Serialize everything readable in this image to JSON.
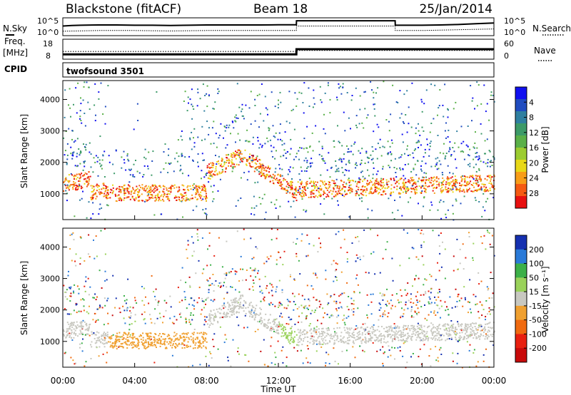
{
  "header": {
    "station": "Blackstone (fitACF)",
    "beam": "Beam 18",
    "date": "25/Jan/2014"
  },
  "left_labels": {
    "nsky": "N.Sky",
    "freq_line1": "Freq.",
    "freq_line2": "[MHz]",
    "cpid": "CPID"
  },
  "right_labels": {
    "nsearch": "N.Search",
    "nave": "Nave"
  },
  "cpid_text": "twofsound 3501",
  "x_axis": {
    "label": "Time UT",
    "ticks": [
      "00:00",
      "04:00",
      "08:00",
      "12:00",
      "16:00",
      "20:00",
      "00:00"
    ]
  },
  "chart_data": [
    {
      "type": "line",
      "panel": "noise",
      "yscale": "log",
      "left_ticks": [
        "10^5",
        "10^0"
      ],
      "right_ticks": [
        "10^5",
        "10^0"
      ],
      "series": [
        {
          "name": "N.Sky",
          "x_hours": [
            0,
            0.5,
            1,
            2,
            3,
            4,
            5,
            6,
            7,
            8,
            9,
            10,
            11,
            12,
            13,
            13.01,
            14,
            15,
            16,
            17,
            18,
            18.5,
            18.51,
            19,
            20,
            21,
            22,
            23,
            24
          ],
          "values": [
            0.55,
            0.58,
            0.6,
            0.62,
            0.62,
            0.6,
            0.6,
            0.58,
            0.6,
            0.62,
            0.62,
            0.62,
            0.62,
            0.63,
            0.63,
            0.9,
            0.9,
            0.9,
            0.9,
            0.9,
            0.9,
            0.9,
            0.6,
            0.6,
            0.6,
            0.62,
            0.65,
            0.7,
            0.75
          ]
        },
        {
          "name": "N.Search",
          "x_hours": [
            0,
            2,
            4,
            6,
            8,
            10,
            12,
            13,
            13.01,
            14,
            16,
            18,
            18.5,
            18.51,
            20,
            22,
            24
          ],
          "values": [
            0.2,
            0.25,
            0.25,
            0.22,
            0.25,
            0.25,
            0.25,
            0.25,
            0.55,
            0.55,
            0.55,
            0.55,
            0.55,
            0.25,
            0.25,
            0.3,
            0.35
          ]
        }
      ]
    },
    {
      "type": "line",
      "panel": "frequency",
      "left_ticks": [
        "18",
        "8"
      ],
      "right_ticks": [
        "60",
        "0"
      ],
      "ylim": [
        8,
        18
      ],
      "series": [
        {
          "name": "Freq.",
          "x_hours": [
            0,
            13,
            13.01,
            24
          ],
          "values": [
            10,
            10,
            13,
            13
          ]
        },
        {
          "name": "Nave",
          "x_hours": [
            0,
            13,
            13.01,
            24
          ],
          "values": [
            22,
            22,
            26,
            26
          ]
        }
      ]
    },
    {
      "type": "heatmap",
      "panel": "power",
      "ylabel": "Slant Range [km]",
      "yticks": [
        1000,
        2000,
        3000,
        4000
      ],
      "ylim": [
        180,
        4600
      ],
      "xlim": [
        0,
        24
      ],
      "colorbar": {
        "label": "Power [dB]",
        "ticks": [
          4,
          8,
          12,
          16,
          20,
          24,
          28
        ],
        "colors": [
          "#1010f0",
          "#204cc0",
          "#2f7fa0",
          "#3c9a68",
          "#5ab048",
          "#9ccc30",
          "#e8d818",
          "#f89d18",
          "#f55a12",
          "#e81010"
        ]
      }
    },
    {
      "type": "heatmap",
      "panel": "velocity",
      "ylabel": "Slant Range [km]",
      "yticks": [
        1000,
        2000,
        3000,
        4000
      ],
      "ylim": [
        180,
        4600
      ],
      "xlim": [
        0,
        24
      ],
      "colorbar": {
        "label": "Velocity [m s⁻¹]",
        "ticks": [
          200,
          100,
          50,
          15,
          -15,
          -50,
          -100,
          -200
        ],
        "colors": [
          "#1530b0",
          "#2a7ad8",
          "#3cb048",
          "#9ad25a",
          "#c8c8c0",
          "#f0a030",
          "#f06a10",
          "#e82010",
          "#c80a0a"
        ]
      }
    }
  ]
}
